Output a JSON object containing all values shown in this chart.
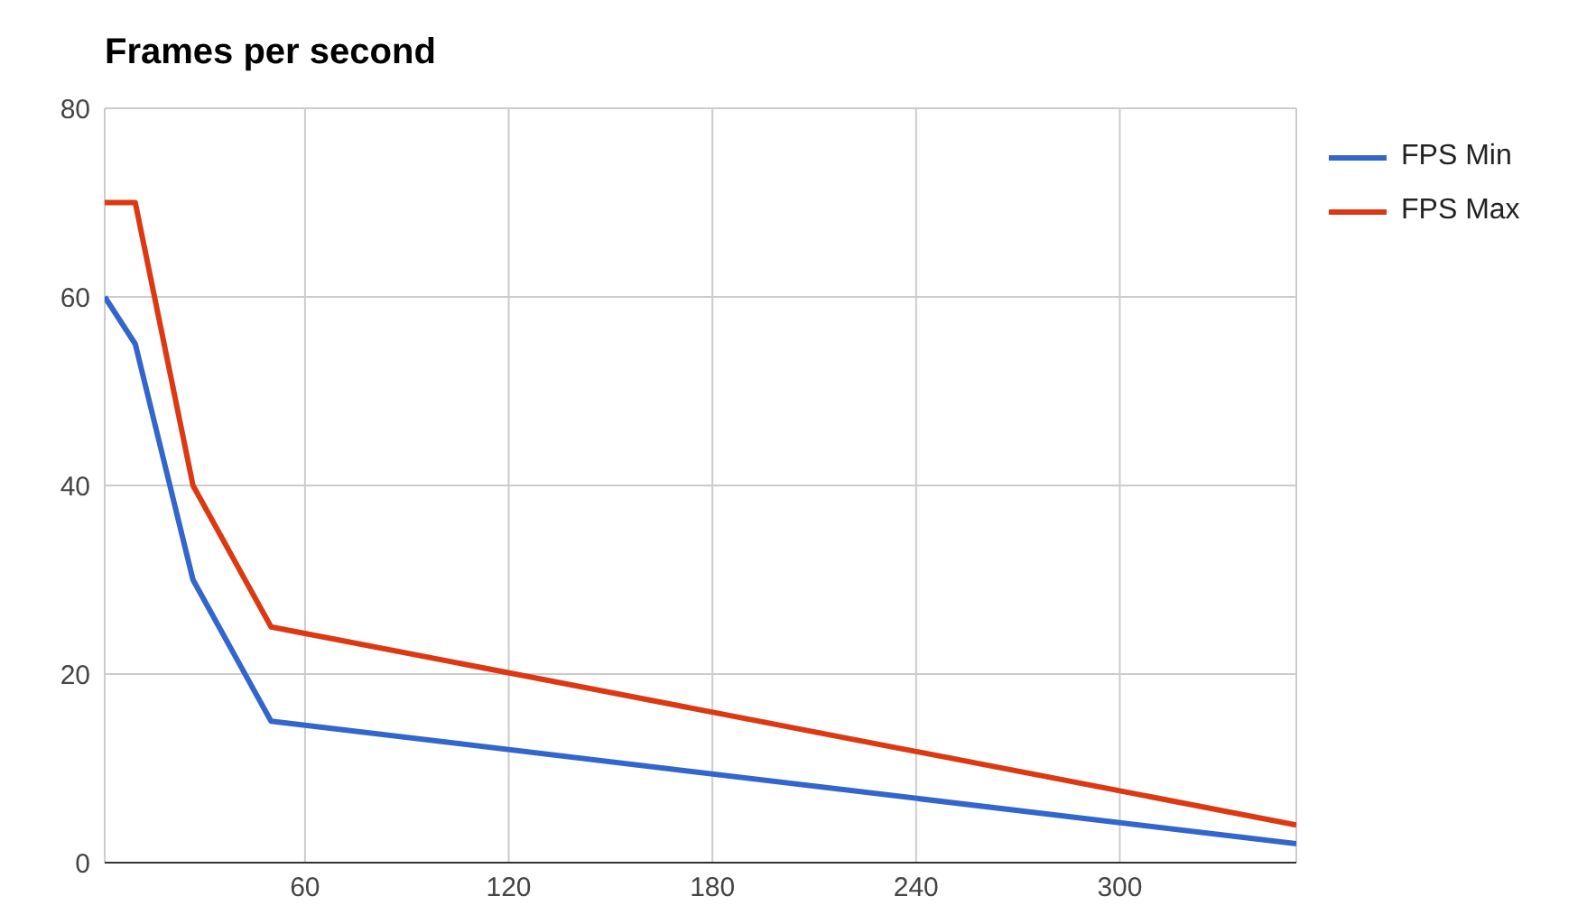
{
  "chart_data": {
    "type": "line",
    "title": "Frames per second",
    "x": [
      1,
      10,
      27,
      50,
      352
    ],
    "series": [
      {
        "name": "FPS Min",
        "color": "#3366cc",
        "values": [
          60,
          55,
          30,
          15,
          2
        ]
      },
      {
        "name": "FPS Max",
        "color": "#dc3912",
        "values": [
          70,
          70,
          40,
          25,
          4
        ]
      }
    ],
    "xlim": [
      1,
      352
    ],
    "xticks": [
      60,
      120,
      180,
      240,
      300
    ],
    "ylim": [
      0,
      80
    ],
    "yticks": [
      0,
      20,
      40,
      60,
      80
    ],
    "grid": true,
    "legend": "top right",
    "marker": "none"
  }
}
